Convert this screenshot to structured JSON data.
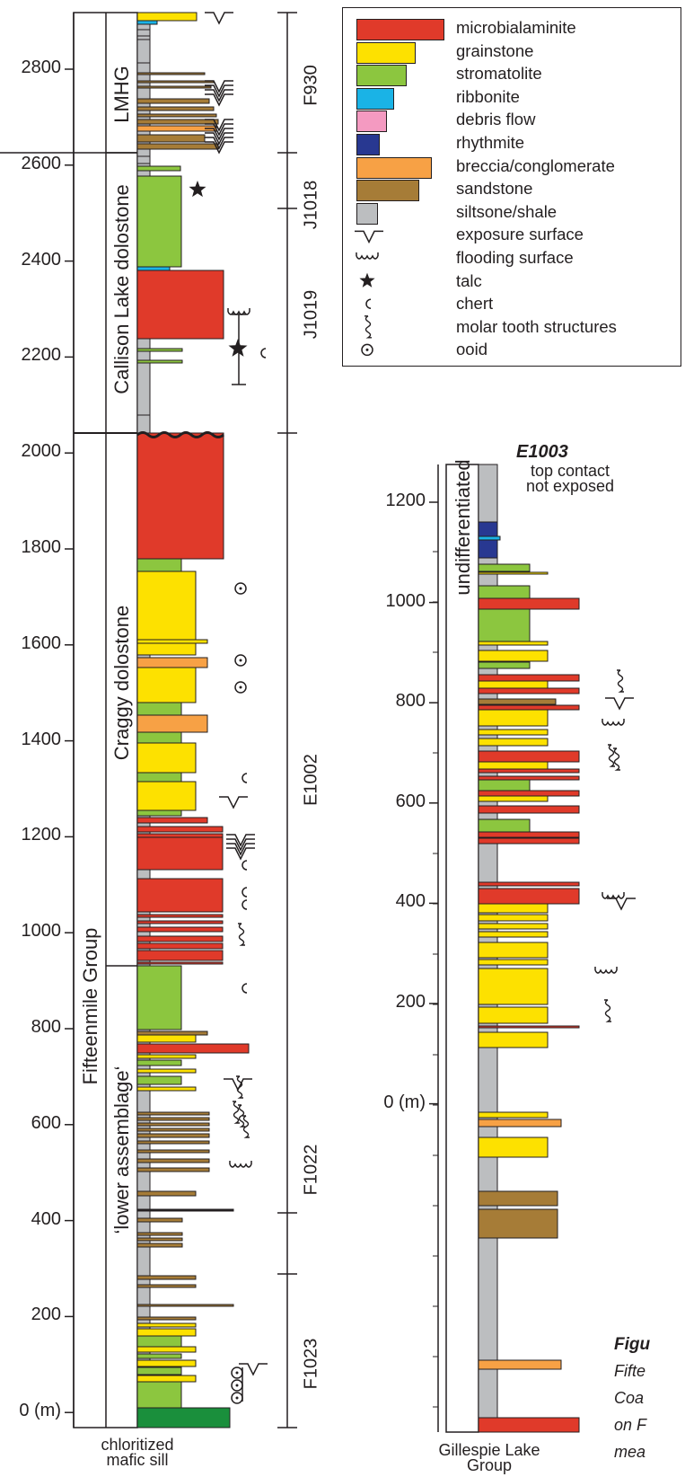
{
  "legend": {
    "items": [
      {
        "label": "microbialaminite",
        "color": "#e03a2a"
      },
      {
        "label": "grainstone",
        "color": "#fde100"
      },
      {
        "label": "stromatolite",
        "color": "#8cc63f"
      },
      {
        "label": "ribbonite",
        "color": "#1ab3e6"
      },
      {
        "label": "debris flow",
        "color": "#f49ac1"
      },
      {
        "label": "rhythmite",
        "color": "#283891"
      },
      {
        "label": "breccia/conglomerate",
        "color": "#f7a145"
      },
      {
        "label": "sandstone",
        "color": "#a67c37"
      },
      {
        "label": "siltsone/shale",
        "color": "#bcbec0"
      },
      {
        "label": "exposure surface",
        "icon": "exposure-surface-icon"
      },
      {
        "label": "flooding surface",
        "icon": "flooding-surface-icon"
      },
      {
        "label": "talc",
        "icon": "star-icon"
      },
      {
        "label": "chert",
        "icon": "chert-icon"
      },
      {
        "label": "molar tooth structures",
        "icon": "molar-tooth-icon"
      },
      {
        "label": "ooid",
        "icon": "ooid-icon"
      }
    ]
  },
  "left_section": {
    "axis_ticks": [
      "2800",
      "2600",
      "2400",
      "2200",
      "2000",
      "1800",
      "1600",
      "1400",
      "1200",
      "1000",
      "800",
      "600",
      "400",
      "200",
      "0 (m)"
    ],
    "group": "Fifteenmile Group",
    "units": [
      "LMHG",
      "Callison Lake dolostone",
      "Craggy dolostone",
      "‘lower assemblage‘"
    ],
    "sections": [
      "F930",
      "J1018",
      "J1019",
      "E1002",
      "F1022",
      "F1023"
    ],
    "base_label_line1": "chloritized",
    "base_label_line2": "mafic sill"
  },
  "right_section": {
    "title": "E1003",
    "top_note_line1": "top contact",
    "top_note_line2": "not exposed",
    "axis_ticks": [
      "1200",
      "1000",
      "800",
      "600",
      "400",
      "200",
      "0 (m)"
    ],
    "unit": "undifferentiated",
    "base_label_line1": "Gillespie Lake",
    "base_label_line2": "Group"
  },
  "caption": {
    "line1": "Figu",
    "line2": "Fifte",
    "line3": "Coa",
    "line4": "on F",
    "line5": "mea"
  }
}
